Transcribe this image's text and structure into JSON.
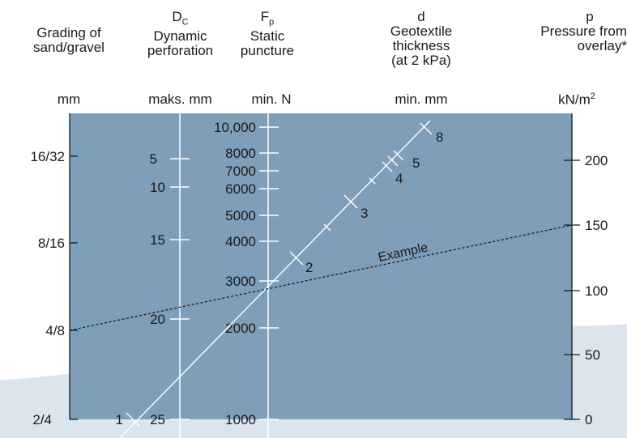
{
  "columns": {
    "grading": {
      "symbol": "",
      "lines": [
        "Grading of",
        "sand/gravel"
      ],
      "unit": "mm",
      "ticks": [
        "16/32",
        "8/16",
        "4/8",
        "2/4"
      ]
    },
    "dynamic": {
      "symbol": "D",
      "symbol_sub": "C",
      "lines": [
        "Dynamic",
        "perforation"
      ],
      "unit": "maks. mm",
      "ticks": [
        "5",
        "10",
        "15",
        "20",
        "25"
      ]
    },
    "static": {
      "symbol": "F",
      "symbol_sub": "p",
      "lines": [
        "Static",
        "puncture"
      ],
      "unit": "min. N",
      "ticks": [
        "10,000",
        "8000",
        "7000",
        "6000",
        "5000",
        "4000",
        "3000",
        "2000",
        "1000"
      ]
    },
    "thickness": {
      "symbol": "d",
      "lines": [
        "Geotextile",
        "thickness",
        "(at 2 kPa)"
      ],
      "unit": "min. mm",
      "ticks": [
        "1",
        "2",
        "3",
        "4",
        "5",
        "8"
      ]
    },
    "pressure": {
      "symbol": "p",
      "lines": [
        "Pressure from",
        "overlay*"
      ],
      "unit": "kN/m",
      "unit_sup": "2",
      "ticks": [
        "200",
        "150",
        "100",
        "50",
        "0"
      ]
    }
  },
  "example_label": "Example",
  "colors": {
    "panel": "#7f9fb8",
    "band": "#dce5ee",
    "line": "#ffffff",
    "text": "#1a1a1a"
  }
}
